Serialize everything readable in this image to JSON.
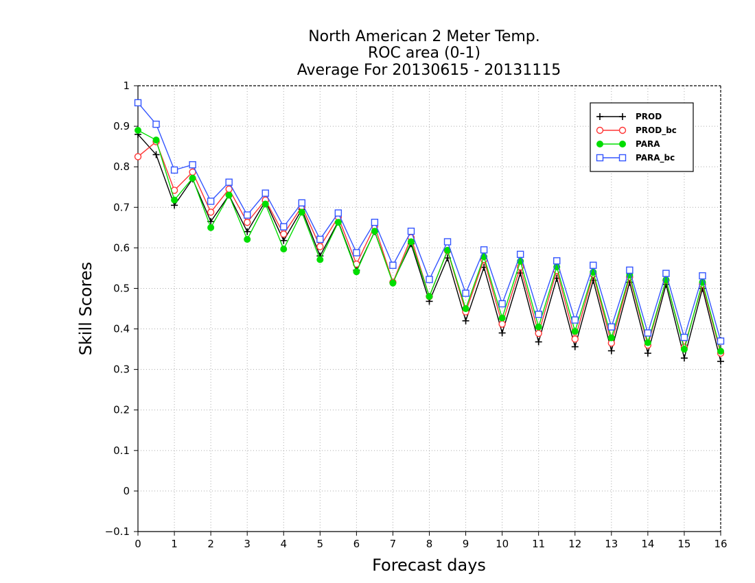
{
  "chart_data": {
    "type": "line",
    "title": [
      "North American 2 Meter Temp.",
      "ROC area (0-1)",
      "Average For 20130615 - 20131115"
    ],
    "xlabel": "Forecast days",
    "ylabel": "Skill Scores",
    "xlim": [
      0,
      16
    ],
    "ylim": [
      -0.1,
      1
    ],
    "xticks": [
      0,
      1,
      2,
      3,
      4,
      5,
      6,
      7,
      8,
      9,
      10,
      11,
      12,
      13,
      14,
      15,
      16
    ],
    "yticks": [
      -0.1,
      0,
      0.1,
      0.2,
      0.3,
      0.4,
      0.5,
      0.6,
      0.7,
      0.8,
      0.9,
      1
    ],
    "ytick_labels": [
      "−0.1",
      "0",
      "0.1",
      "0.2",
      "0.3",
      "0.4",
      "0.5",
      "0.6",
      "0.7",
      "0.8",
      "0.9",
      "1"
    ],
    "grid": true,
    "legend_position": "top-right",
    "x": [
      0,
      0.5,
      1,
      1.5,
      2,
      2.5,
      3,
      3.5,
      4,
      4.5,
      5,
      5.5,
      6,
      6.5,
      7,
      7.5,
      8,
      8.5,
      9,
      9.5,
      10,
      10.5,
      11,
      11.5,
      12,
      12.5,
      13,
      13.5,
      14,
      14.5,
      15,
      15.5,
      16
    ],
    "series": [
      {
        "name": "PROD",
        "color": "#000000",
        "marker": "plus",
        "values": [
          0.88,
          0.83,
          0.705,
          0.77,
          0.665,
          0.73,
          0.64,
          0.715,
          0.618,
          0.695,
          0.58,
          0.665,
          0.545,
          0.64,
          0.515,
          0.61,
          0.468,
          0.575,
          0.42,
          0.552,
          0.39,
          0.538,
          0.368,
          0.525,
          0.356,
          0.52,
          0.346,
          0.515,
          0.34,
          0.51,
          0.328,
          0.5,
          0.32
        ]
      },
      {
        "name": "PROD_bc",
        "color": "#ff3333",
        "marker": "open-circle",
        "values": [
          0.825,
          0.862,
          0.742,
          0.787,
          0.688,
          0.745,
          0.663,
          0.718,
          0.634,
          0.702,
          0.603,
          0.676,
          0.56,
          0.654,
          0.515,
          0.625,
          0.48,
          0.593,
          0.442,
          0.571,
          0.412,
          0.553,
          0.389,
          0.544,
          0.375,
          0.535,
          0.365,
          0.528,
          0.36,
          0.52,
          0.355,
          0.51,
          0.34
        ]
      },
      {
        "name": "PARA",
        "color": "#00dd00",
        "marker": "filled-circle",
        "values": [
          0.89,
          0.866,
          0.718,
          0.772,
          0.65,
          0.73,
          0.621,
          0.708,
          0.597,
          0.688,
          0.571,
          0.663,
          0.541,
          0.641,
          0.513,
          0.615,
          0.48,
          0.594,
          0.45,
          0.578,
          0.427,
          0.567,
          0.405,
          0.553,
          0.394,
          0.54,
          0.378,
          0.533,
          0.366,
          0.521,
          0.35,
          0.515,
          0.345
        ]
      },
      {
        "name": "PARA_bc",
        "color": "#3355ff",
        "marker": "open-square",
        "values": [
          0.958,
          0.905,
          0.792,
          0.805,
          0.715,
          0.762,
          0.681,
          0.735,
          0.652,
          0.711,
          0.621,
          0.686,
          0.588,
          0.663,
          0.557,
          0.641,
          0.522,
          0.615,
          0.488,
          0.595,
          0.462,
          0.584,
          0.436,
          0.568,
          0.422,
          0.557,
          0.405,
          0.545,
          0.39,
          0.537,
          0.379,
          0.531,
          0.37
        ]
      }
    ]
  }
}
